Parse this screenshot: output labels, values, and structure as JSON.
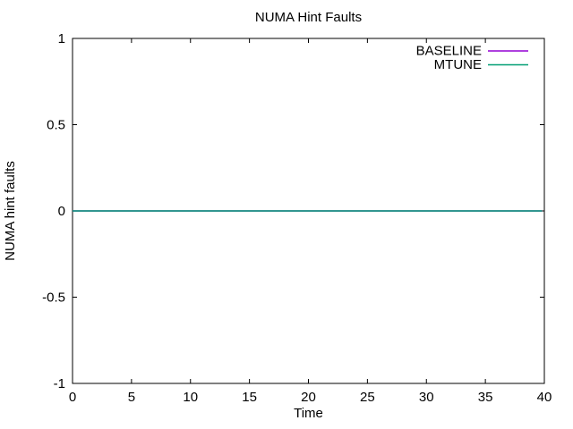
{
  "colors": {
    "background": "#ffffff",
    "foreground": "#000000",
    "border": "#000000",
    "series_baseline": "#9400d3",
    "series_mtune": "#009e73"
  },
  "chart_data": {
    "type": "line",
    "title": "NUMA Hint Faults",
    "xlabel": "Time",
    "ylabel": "NUMA hint faults",
    "xlim": [
      0,
      40
    ],
    "ylim": [
      -1,
      1
    ],
    "xticks": [
      0,
      5,
      10,
      15,
      20,
      25,
      30,
      35,
      40
    ],
    "yticks": [
      -1,
      -0.5,
      0,
      0.5,
      1
    ],
    "grid": false,
    "legend_position": "top-right-inside",
    "legend_entries": [
      "BASELINE",
      "MTUNE"
    ],
    "series": [
      {
        "name": "BASELINE",
        "color": "#9400d3",
        "x": [
          0,
          39.8
        ],
        "y": [
          0,
          0
        ]
      },
      {
        "name": "MTUNE",
        "color": "#009e73",
        "x": [
          0,
          39.8
        ],
        "y": [
          0,
          0
        ]
      }
    ]
  }
}
